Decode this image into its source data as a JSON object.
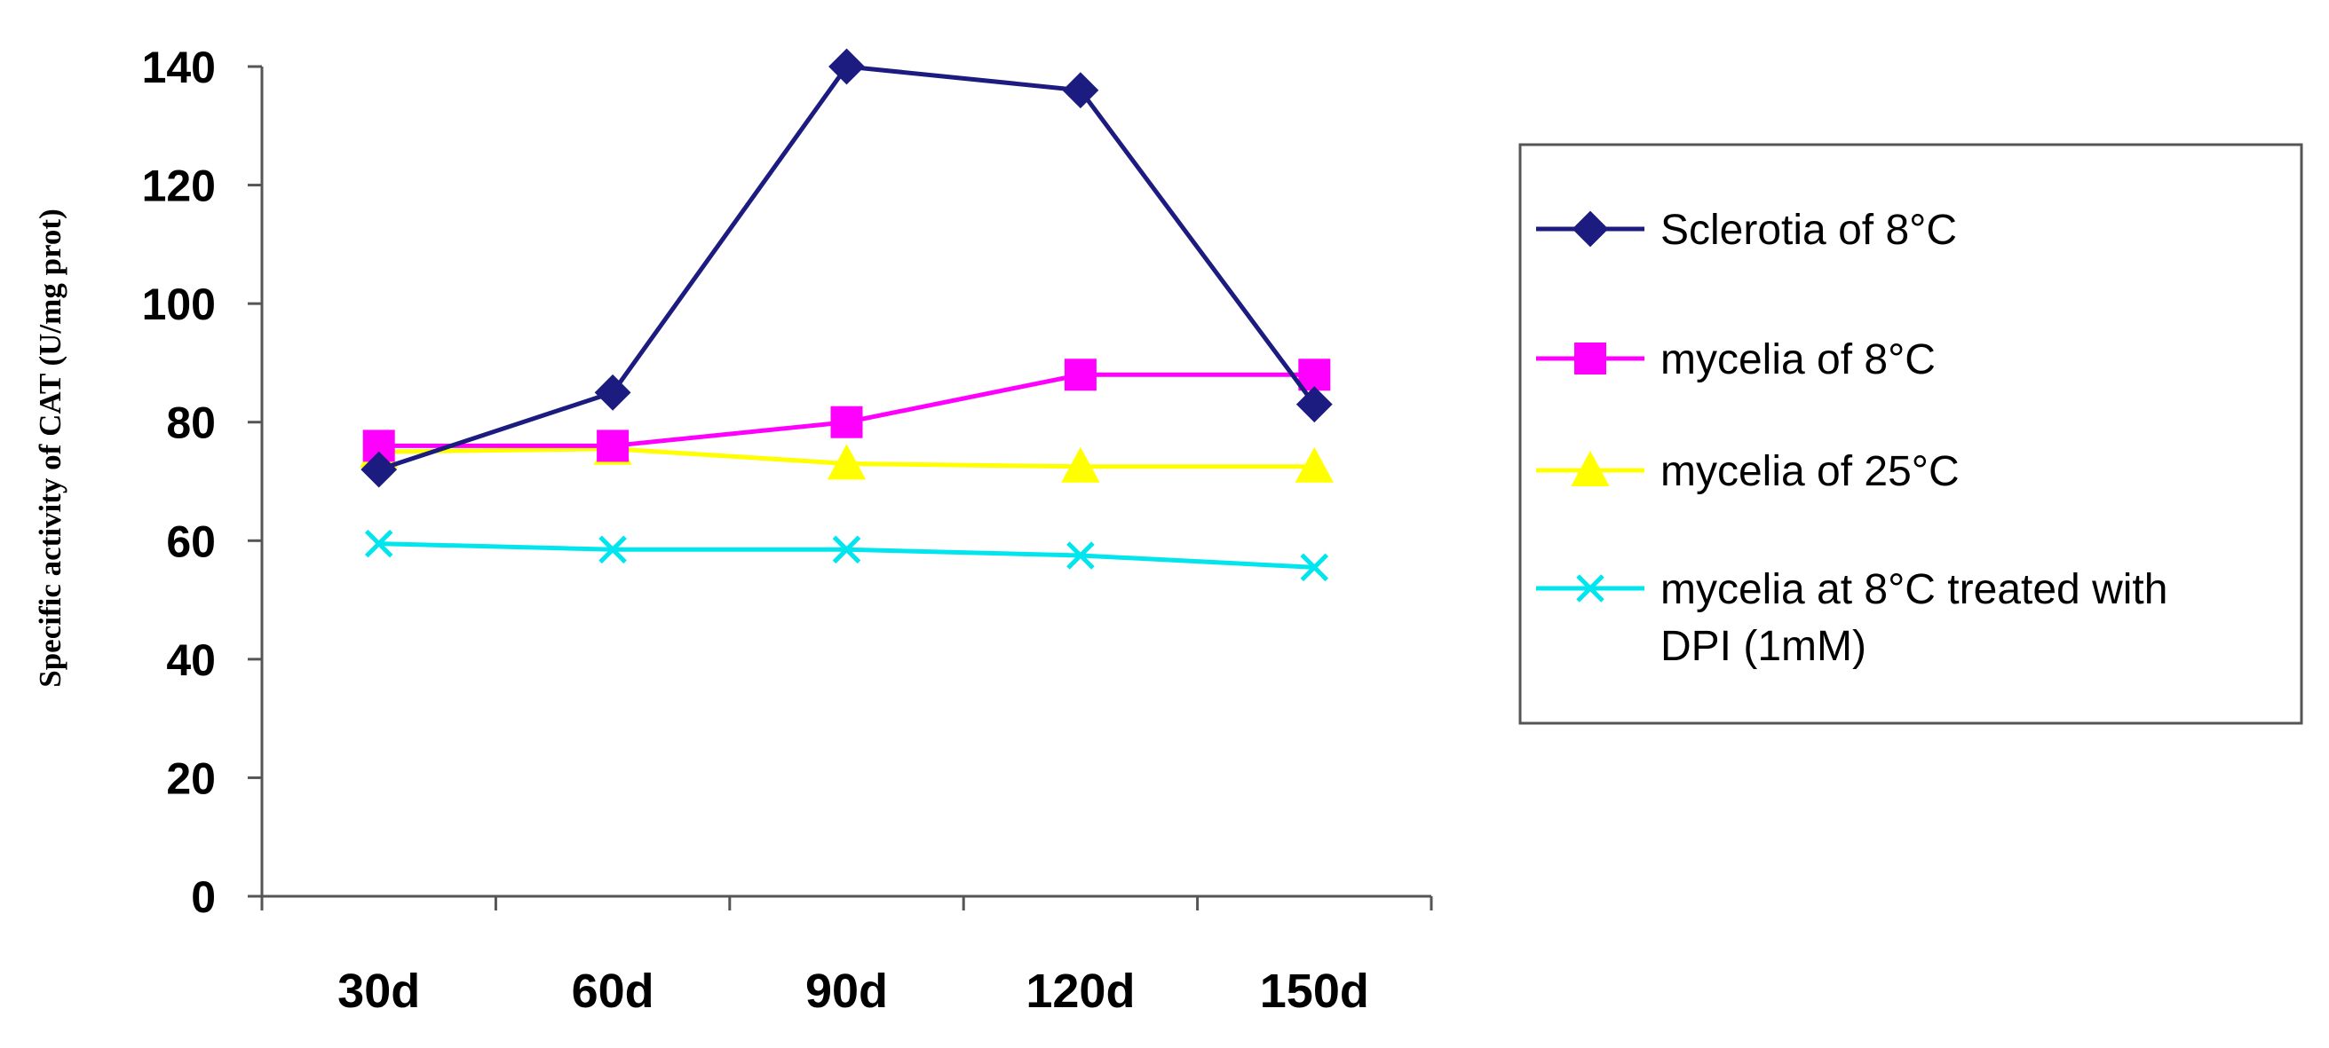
{
  "chart_data": {
    "type": "line",
    "categories": [
      "30d",
      "60d",
      "90d",
      "120d",
      "150d"
    ],
    "ylabel": "Specific activity of CAT (U/mg prot)",
    "xlabel": "",
    "title": "",
    "ylim": [
      0,
      140
    ],
    "yticks": [
      0,
      20,
      40,
      60,
      80,
      100,
      120,
      140
    ],
    "grid": false,
    "legend_position": "right",
    "series": [
      {
        "name": "Sclerotia of 8°C",
        "values": [
          72,
          85,
          140,
          136,
          83
        ],
        "color": "#1c1c80",
        "marker": "diamond"
      },
      {
        "name": "mycelia of 8°C",
        "values": [
          76,
          76,
          80,
          88,
          88
        ],
        "color": "#ff00ff",
        "marker": "square"
      },
      {
        "name": "mycelia of 25°C",
        "values": [
          75,
          75.5,
          73,
          72.5,
          72.5
        ],
        "color": "#ffff00",
        "marker": "triangle"
      },
      {
        "name": "mycelia at 8°C treated with DPI (1mM)",
        "values": [
          59.5,
          58.5,
          58.5,
          57.5,
          55.5
        ],
        "color": "#00e5ee",
        "marker": "x"
      }
    ]
  }
}
